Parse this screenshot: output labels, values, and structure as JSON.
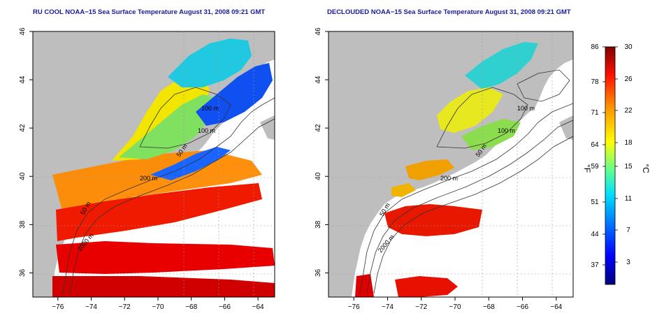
{
  "maps": [
    {
      "title": "RU COOL NOAA−15 Sea Surface Temperature August 31, 2008 09:21 GMT",
      "coverage": "full"
    },
    {
      "title": "DECLOUDED NOAA−15 Sea Surface Temperature August 31, 2008 09:21 GMT",
      "coverage": "declouded"
    }
  ],
  "axes": {
    "lon_ticks": [
      "−76",
      "−74",
      "−72",
      "−70",
      "−68",
      "−66",
      "−64"
    ],
    "lat_ticks": [
      "36",
      "38",
      "40",
      "42",
      "44",
      "46"
    ],
    "lon_range": [
      -77.5,
      -63
    ],
    "lat_range": [
      35,
      46
    ]
  },
  "contour_labels": [
    "100 m",
    "100 m",
    "50 m",
    "200 m",
    "50 m",
    "2000 m"
  ],
  "colorbar": {
    "celsius_ticks": [
      "30",
      "26",
      "22",
      "18",
      "15",
      "11",
      "7",
      "3"
    ],
    "fahrenheit_ticks": [
      "86",
      "78",
      "71",
      "64",
      "59",
      "51",
      "44",
      "37"
    ],
    "unit_left": "°F",
    "unit_right": "°C",
    "colors": [
      "#000080",
      "#0000ff",
      "#0080ff",
      "#00ffff",
      "#80ff80",
      "#ffff00",
      "#ff8000",
      "#ff0000",
      "#800000"
    ]
  },
  "colors": {
    "land": "#bebebe",
    "ocean_nodata": "#ffffff",
    "title": "#1a1a9c"
  }
}
